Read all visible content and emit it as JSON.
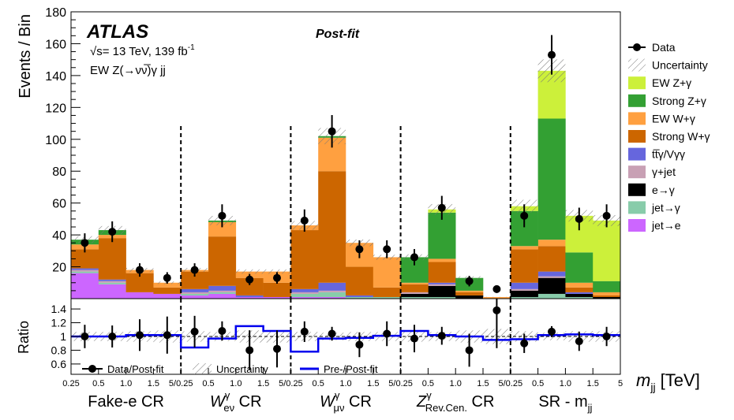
{
  "chart_data": {
    "type": "bar",
    "stacked": true,
    "ylabel": "Events / Bin",
    "ratio_ylabel": "Ratio",
    "xlabel": "m_jj [TeV]",
    "xlabel_main": "m",
    "xlabel_sub": "jj",
    "xlabel_unit": " [TeV]",
    "ylim": [
      0,
      180
    ],
    "yticks": [
      "20",
      "40",
      "60",
      "80",
      "100",
      "120",
      "140",
      "160",
      "180"
    ],
    "ratio_ylim": [
      0.45,
      1.55
    ],
    "ratio_yticks": [
      "0.6",
      "0.8",
      "1",
      "1.2",
      "1.4"
    ],
    "bin_edge_labels": [
      "0.25",
      "0.5",
      "1.0",
      "1.5",
      "5/0.25"
    ],
    "last_edge_label": "5",
    "experiment": "ATLAS",
    "fit_label": "Post-fit",
    "energy_label": "= 13 TeV, 139 fb",
    "energy_sqrt": "√s",
    "lumi_exp": "-1",
    "process_label": "EW Z(→νν̅)γ jj",
    "regions": [
      {
        "main": "Fake-e CR",
        "sup": "",
        "sub": ""
      },
      {
        "main": "W",
        "sup": "γ",
        "sub": "eν",
        "suffix": " CR"
      },
      {
        "main": "W",
        "sup": "γ",
        "sub": "μν",
        "suffix": " CR"
      },
      {
        "main": "Z",
        "sup": "γ",
        "sub": "Rev.Cen.",
        "suffix": " CR"
      },
      {
        "main": "SR - m",
        "sup": "",
        "sub": "jj",
        "suffix": ""
      }
    ],
    "categories": [
      "FE1",
      "FE2",
      "FE3",
      "FE4",
      "WE1",
      "WE2",
      "WE3",
      "WE4",
      "WM1",
      "WM2",
      "WM3",
      "WM4",
      "ZR1",
      "ZR2",
      "ZR3",
      "ZR4",
      "SR1",
      "SR2",
      "SR3",
      "SR4"
    ],
    "series": [
      {
        "name": "jet→e",
        "color": "#cc66ff",
        "values": [
          16,
          9,
          4,
          3,
          2,
          3,
          1,
          1,
          1,
          1,
          0,
          0,
          0,
          0,
          0,
          0,
          0,
          0,
          0,
          0
        ]
      },
      {
        "name": "jet→γ",
        "color": "#88ccaa",
        "values": [
          1,
          1,
          0,
          0,
          1,
          1,
          0,
          0,
          2,
          3,
          1,
          1,
          1,
          1,
          0,
          0,
          1,
          3,
          1,
          0
        ]
      },
      {
        "name": "e→γ",
        "color": "#000000",
        "values": [
          0,
          0,
          0,
          0,
          0,
          0,
          0,
          0,
          0,
          0,
          0,
          0,
          2,
          7,
          2,
          0,
          4,
          10,
          2,
          1
        ]
      },
      {
        "name": "γ+jet",
        "color": "#c8a0b4",
        "values": [
          1,
          1,
          0,
          0,
          1,
          1,
          0,
          0,
          1,
          1,
          0,
          0,
          1,
          1,
          0,
          0,
          1,
          1,
          0,
          0
        ]
      },
      {
        "name": "tt̅γ/Vγγ",
        "color": "#6666dd",
        "values": [
          1,
          1,
          0,
          0,
          2,
          3,
          1,
          0,
          2,
          5,
          1,
          0,
          0,
          1,
          0,
          0,
          4,
          3,
          1,
          0
        ]
      },
      {
        "name": "Strong W+γ",
        "color": "#cc6600",
        "values": [
          12,
          26,
          12,
          4,
          11,
          31,
          11,
          9,
          37,
          70,
          18,
          6,
          5,
          13,
          2,
          0,
          21,
          16,
          3,
          1
        ]
      },
      {
        "name": "EW W+γ",
        "color": "#ffa040",
        "values": [
          3,
          2,
          2,
          3,
          1,
          9,
          4,
          7,
          3,
          21,
          15,
          19,
          1,
          2,
          1,
          1,
          2,
          4,
          3,
          2
        ]
      },
      {
        "name": "Strong Z+γ",
        "color": "#33a033",
        "values": [
          3,
          3,
          0,
          0,
          0,
          1,
          0,
          0,
          0,
          1,
          0,
          0,
          16,
          29,
          8,
          0,
          22,
          76,
          19,
          7
        ]
      },
      {
        "name": "EW Z+γ",
        "color": "#ccf03a",
        "values": [
          0,
          0,
          0,
          0,
          0,
          0,
          0,
          0,
          0,
          0,
          0,
          0,
          0,
          2,
          0,
          0,
          3,
          30,
          23,
          38
        ]
      }
    ],
    "data": {
      "name": "Data",
      "values": [
        35,
        42,
        18,
        13,
        18,
        52,
        12,
        13,
        49,
        105,
        31,
        31,
        26,
        57,
        11,
        6,
        52,
        153,
        50,
        52
      ],
      "errors": [
        6,
        6.5,
        4.2,
        3.6,
        4.2,
        7.2,
        3.5,
        3.6,
        7,
        10.2,
        5.6,
        5.6,
        5.1,
        7.5,
        3.3,
        2.4,
        7.2,
        12.4,
        7.1,
        7.2
      ]
    },
    "uncertainty": {
      "name": "Uncertainty",
      "rel": [
        0.06,
        0.06,
        0.07,
        0.08,
        0.07,
        0.06,
        0.08,
        0.08,
        0.06,
        0.05,
        0.06,
        0.06,
        0.07,
        0.06,
        0.08,
        0.1,
        0.07,
        0.05,
        0.07,
        0.07
      ]
    },
    "ratio": {
      "name": "Data/Post-fit",
      "values": [
        1.0,
        1.0,
        1.02,
        1.02,
        1.07,
        1.08,
        0.8,
        0.82,
        1.07,
        1.04,
        0.88,
        1.04,
        0.97,
        1.01,
        0.8,
        1.38,
        0.9,
        1.07,
        0.93,
        1.0
      ],
      "errors": [
        0.17,
        0.16,
        0.23,
        0.27,
        0.23,
        0.14,
        0.29,
        0.27,
        0.15,
        0.1,
        0.18,
        0.18,
        0.2,
        0.13,
        0.24,
        0.55,
        0.14,
        0.08,
        0.14,
        0.14
      ]
    },
    "prefit": {
      "name": "Pre-/Post-fit",
      "color": "#0000ee",
      "values": [
        1.0,
        1.0,
        1.02,
        1.02,
        0.84,
        0.97,
        1.15,
        1.08,
        0.78,
        0.97,
        0.98,
        1.01,
        1.08,
        1.02,
        1.0,
        0.95,
        0.96,
        1.02,
        1.03,
        1.02
      ]
    },
    "ratio_uncertainty_name": "Uncertainty",
    "legend_position": "right"
  }
}
